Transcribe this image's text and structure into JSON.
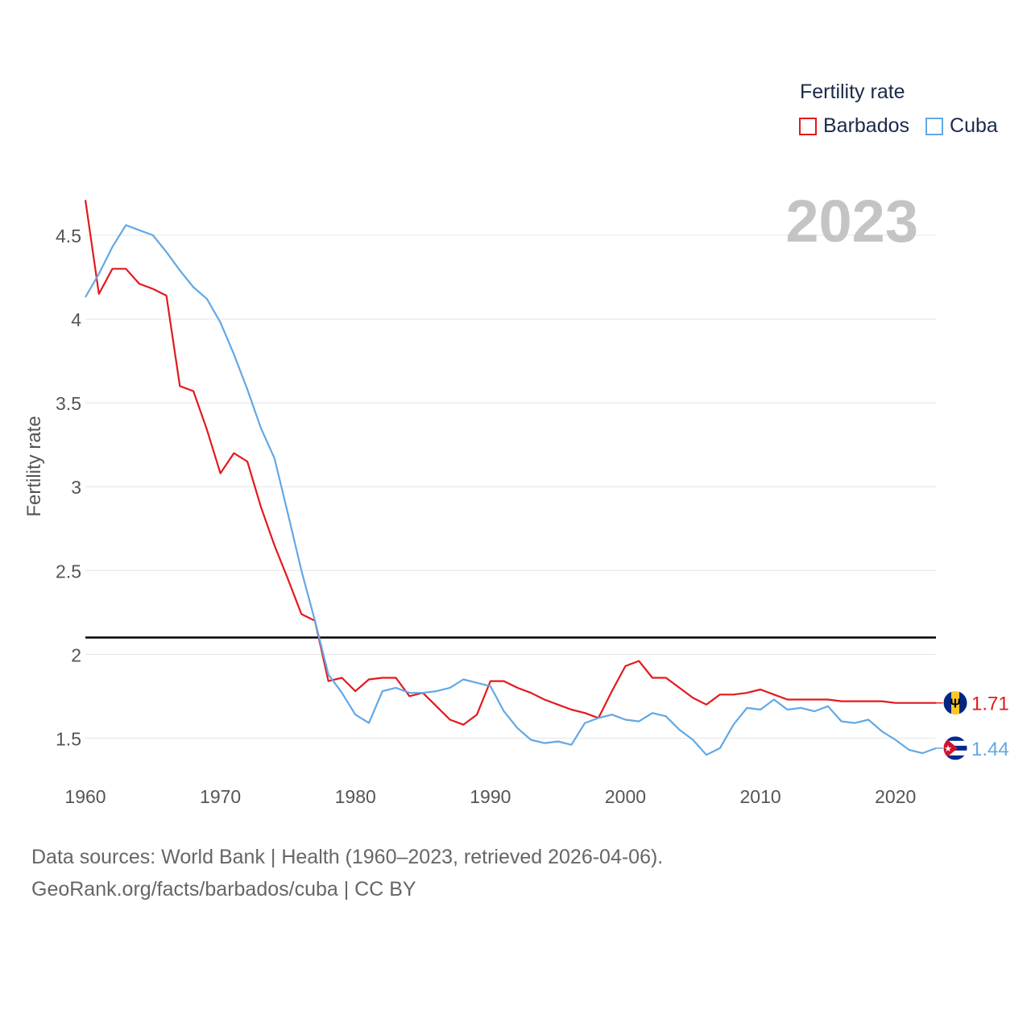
{
  "chart_data": {
    "type": "line",
    "ylabel": "Fertility rate",
    "xlabel": "",
    "xlim": [
      1960,
      2023
    ],
    "ylim": [
      1.3,
      4.75
    ],
    "x_ticks": [
      "1960",
      "1970",
      "1980",
      "1990",
      "2000",
      "2010",
      "2020"
    ],
    "y_ticks": [
      "1.5",
      "2",
      "2.5",
      "3",
      "3.5",
      "4",
      "4.5"
    ],
    "reference_line": 2.1,
    "year_label": "2023",
    "legend_title": "Fertility rate",
    "x": [
      1960,
      1961,
      1962,
      1963,
      1964,
      1965,
      1966,
      1967,
      1968,
      1969,
      1970,
      1971,
      1972,
      1973,
      1974,
      1975,
      1976,
      1977,
      1978,
      1979,
      1980,
      1981,
      1982,
      1983,
      1984,
      1985,
      1986,
      1987,
      1988,
      1989,
      1990,
      1991,
      1992,
      1993,
      1994,
      1995,
      1996,
      1997,
      1998,
      1999,
      2000,
      2001,
      2002,
      2003,
      2004,
      2005,
      2006,
      2007,
      2008,
      2009,
      2010,
      2011,
      2012,
      2013,
      2014,
      2015,
      2016,
      2017,
      2018,
      2019,
      2020,
      2021,
      2022,
      2023
    ],
    "series": [
      {
        "name": "Barbados",
        "color": "#e3191c",
        "end_label": "1.71",
        "flag": "barbados-flag",
        "values": [
          4.71,
          4.15,
          4.3,
          4.3,
          4.21,
          4.18,
          4.14,
          3.6,
          3.57,
          3.34,
          3.08,
          3.2,
          3.15,
          2.88,
          2.65,
          2.45,
          2.24,
          2.2,
          1.84,
          1.86,
          1.78,
          1.85,
          1.86,
          1.86,
          1.75,
          1.77,
          1.69,
          1.61,
          1.58,
          1.64,
          1.84,
          1.84,
          1.8,
          1.77,
          1.73,
          1.7,
          1.67,
          1.65,
          1.62,
          1.78,
          1.93,
          1.96,
          1.86,
          1.86,
          1.8,
          1.74,
          1.7,
          1.76,
          1.76,
          1.77,
          1.79,
          1.76,
          1.73,
          1.73,
          1.73,
          1.73,
          1.72,
          1.72,
          1.72,
          1.72,
          1.71,
          1.71,
          1.71,
          1.71
        ]
      },
      {
        "name": "Cuba",
        "color": "#62a8e5",
        "end_label": "1.44",
        "flag": "cuba-flag",
        "values": [
          4.13,
          4.27,
          4.43,
          4.56,
          4.53,
          4.5,
          4.4,
          4.29,
          4.19,
          4.12,
          3.98,
          3.79,
          3.58,
          3.35,
          3.17,
          2.84,
          2.5,
          2.2,
          1.88,
          1.77,
          1.64,
          1.59,
          1.78,
          1.8,
          1.77,
          1.77,
          1.78,
          1.8,
          1.85,
          1.83,
          1.81,
          1.66,
          1.56,
          1.49,
          1.47,
          1.48,
          1.46,
          1.59,
          1.62,
          1.64,
          1.61,
          1.6,
          1.65,
          1.63,
          1.55,
          1.49,
          1.4,
          1.44,
          1.58,
          1.68,
          1.67,
          1.73,
          1.67,
          1.68,
          1.66,
          1.69,
          1.6,
          1.59,
          1.61,
          1.54,
          1.49,
          1.43,
          1.41,
          1.44
        ]
      }
    ]
  },
  "source": {
    "line1": "Data sources: World Bank | Health (1960–2023, retrieved 2026-04-06).",
    "line2": "GeoRank.org/facts/barbados/cuba | CC BY"
  }
}
